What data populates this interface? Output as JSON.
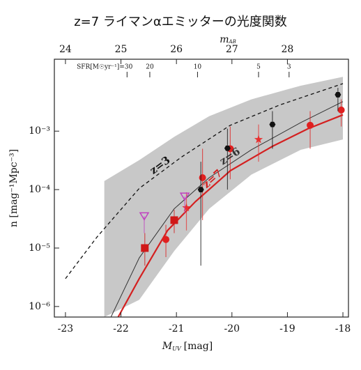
{
  "chart_data": {
    "type": "luminosity-function",
    "title": "z=7 ライマンαエミッターの光度関数",
    "x_label": "M",
    "x_label_sub": "UV",
    "x_label_unit": "[mag]",
    "y_label": "n [mag⁻¹Mpc⁻³]",
    "top_label": "m",
    "top_label_sub": "AB",
    "xlim": [
      -23.2,
      -17.9
    ],
    "xticks": [
      -23,
      -22,
      -21,
      -20,
      -19,
      -18
    ],
    "top_xlim": [
      23.8,
      29.1
    ],
    "top_xticks": [
      24,
      25,
      26,
      27,
      28
    ],
    "ylim": [
      6.6e-07,
      0.017
    ],
    "log_y": true,
    "yticks": [
      {
        "value": 1e-06,
        "label": "10⁻⁶"
      },
      {
        "value": 1e-05,
        "label": "10⁻⁵"
      },
      {
        "value": 0.0001,
        "label": "10⁻⁴"
      },
      {
        "value": 0.001,
        "label": "10⁻³"
      }
    ],
    "sfr_ticks": [
      {
        "value": -21.89,
        "label": "SFR[M☉yr⁻¹]=30"
      },
      {
        "value": -21.48,
        "label": "20"
      },
      {
        "value": -20.62,
        "label": "10"
      },
      {
        "value": -19.52,
        "label": "5"
      },
      {
        "value": -18.97,
        "label": "3"
      }
    ],
    "band": {
      "color": "#c8c8c8",
      "x": [
        -22.3,
        -21.67,
        -21.04,
        -20.41,
        -19.65,
        -18.76,
        -18
      ],
      "upper": [
        0.00014,
        0.00032,
        0.0008,
        0.0018,
        0.0035,
        0.006,
        0.0085
      ],
      "lower": [
        6.6e-07,
        1.3e-06,
        8.9e-06,
        4.7e-05,
        0.00018,
        0.00048,
        0.00072
      ]
    },
    "curves": [
      {
        "name": "z=3",
        "color": "#111111",
        "dashed": true,
        "width": 1.3,
        "x": [
          -23,
          -22.43,
          -21.67,
          -20.91,
          -20.03,
          -19.14,
          -18
        ],
        "y": [
          3e-06,
          1.55e-05,
          0.000105,
          0.00036,
          0.00126,
          0.0028,
          0.0065
        ]
      },
      {
        "name": "z=6",
        "color": "#333333",
        "dashed": false,
        "width": 1,
        "x": [
          -22.18,
          -21.67,
          -21.04,
          -20.41,
          -19.65,
          -18.76,
          -18
        ],
        "y": [
          6.6e-07,
          6.8e-06,
          4.7e-05,
          0.00016,
          0.00048,
          0.0014,
          0.0032
        ]
      },
      {
        "name": "z=7",
        "color": "#d42020",
        "dashed": false,
        "width": 2.2,
        "x": [
          -22.05,
          -21.67,
          -21.16,
          -20.66,
          -20.03,
          -19.27,
          -18.63,
          -18
        ],
        "y": [
          6.6e-07,
          3e-06,
          2e-05,
          6.2e-05,
          0.00021,
          0.00055,
          0.0011,
          0.0019
        ]
      }
    ],
    "series": [
      {
        "marker": "circle",
        "color": "#e02020",
        "x": [
          -21.19,
          -20.53,
          -20.03,
          -18.59,
          -18.03
        ],
        "y": [
          1.4e-05,
          0.00016,
          0.0005,
          0.00126,
          0.0023
        ],
        "low": [
          7e-06,
          3e-05,
          0.00015,
          0.0005,
          0.0012
        ],
        "high": [
          2.5e-05,
          0.0005,
          0.0012,
          0.0022,
          0.0035
        ]
      },
      {
        "marker": "square",
        "color": "#d01818",
        "x": [
          -21.57,
          -21.04
        ],
        "y": [
          1e-05,
          3e-05
        ],
        "low": [
          5e-06,
          1.8e-05
        ],
        "high": [
          1.8e-05,
          4.5e-05
        ]
      },
      {
        "marker": "star",
        "color": "#e83030",
        "x": [
          -20.82,
          -19.52
        ],
        "y": [
          4.9e-05,
          0.00072
        ],
        "low": [
          2e-05,
          0.0003
        ],
        "high": [
          9e-05,
          0.0013
        ]
      },
      {
        "marker": "hexagon",
        "color": "#111111",
        "x": [
          -20.56,
          -20.08,
          -19.27,
          -18.09
        ],
        "y": [
          0.0001,
          0.00051,
          0.0013,
          0.0042
        ],
        "low": [
          5e-06,
          0.0001,
          0.0005,
          0.0022
        ],
        "high": [
          0.0003,
          0.0011,
          0.0022,
          0.0055
        ]
      },
      {
        "marker": "triangle",
        "color": "#c040c0",
        "x": [
          -21.58,
          -20.85
        ],
        "y": [
          3.5e-05,
          7.6e-05
        ],
        "low": [
          1.8e-05,
          4e-05
        ],
        "high": [
          3.5e-05,
          7.6e-05
        ]
      }
    ]
  }
}
